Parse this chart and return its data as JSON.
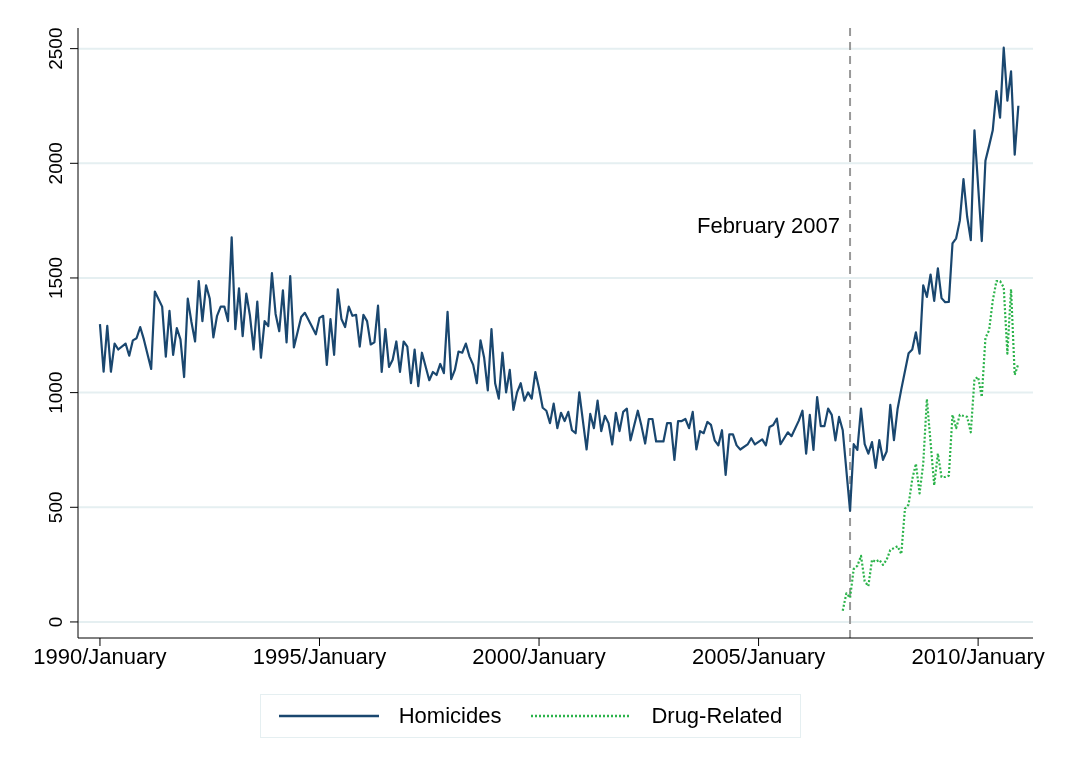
{
  "chart_data": {
    "type": "line",
    "xlim": [
      "1989-07",
      "2011-04"
    ],
    "ylim": [
      -70,
      2590
    ],
    "xticks": [
      {
        "value": "1990-01",
        "label": "1990/January"
      },
      {
        "value": "1995-01",
        "label": "1995/January"
      },
      {
        "value": "2000-01",
        "label": "2000/January"
      },
      {
        "value": "2005-01",
        "label": "2005/January"
      },
      {
        "value": "2010-01",
        "label": "2010/January"
      }
    ],
    "yticks": [
      0,
      500,
      1000,
      1500,
      2000,
      2500
    ],
    "grid": "y",
    "legend": "bottom",
    "marker": "none",
    "ref_lines": [
      {
        "axis": "x",
        "value": "2007-02",
        "label": "February 2007",
        "color": "#999999",
        "line_style": "dashed"
      }
    ],
    "series": [
      {
        "name": "Homicides",
        "color": "#1a476f",
        "line_style": "solid",
        "x": [
          "1990-01",
          "1990-02",
          "1990-03",
          "1990-04",
          "1990-05",
          "1990-06",
          "1990-08",
          "1990-09",
          "1990-10",
          "1990-11",
          "1990-12",
          "1991-01",
          "1991-03",
          "1991-04",
          "1991-06",
          "1991-07",
          "1991-08",
          "1991-09",
          "1991-10",
          "1991-11",
          "1991-12",
          "1992-01",
          "1992-02",
          "1992-03",
          "1992-04",
          "1992-05",
          "1992-06",
          "1992-07",
          "1992-08",
          "1992-09",
          "1992-10",
          "1992-11",
          "1992-12",
          "1993-01",
          "1993-02",
          "1993-03",
          "1993-04",
          "1993-05",
          "1993-06",
          "1993-07",
          "1993-08",
          "1993-09",
          "1993-10",
          "1993-11",
          "1993-12",
          "1994-01",
          "1994-02",
          "1994-03",
          "1994-04",
          "1994-05",
          "1994-06",
          "1994-08",
          "1994-09",
          "1994-11",
          "1994-12",
          "1995-01",
          "1995-02",
          "1995-03",
          "1995-04",
          "1995-05",
          "1995-06",
          "1995-07",
          "1995-08",
          "1995-09",
          "1995-10",
          "1995-11",
          "1995-12",
          "1996-01",
          "1996-02",
          "1996-03",
          "1996-04",
          "1996-05",
          "1996-06",
          "1996-07",
          "1996-08",
          "1996-09",
          "1996-10",
          "1996-11",
          "1996-12",
          "1997-01",
          "1997-02",
          "1997-03",
          "1997-04",
          "1997-05",
          "1997-07",
          "1997-08",
          "1997-09",
          "1997-10",
          "1997-11",
          "1997-12",
          "1998-01",
          "1998-02",
          "1998-03",
          "1998-04",
          "1998-05",
          "1998-06",
          "1998-07",
          "1998-08",
          "1998-09",
          "1998-10",
          "1998-11",
          "1998-12",
          "1999-01",
          "1999-02",
          "1999-03",
          "1999-04",
          "1999-05",
          "1999-06",
          "1999-07",
          "1999-08",
          "1999-09",
          "1999-10",
          "1999-11",
          "1999-12",
          "2000-01",
          "2000-02",
          "2000-03",
          "2000-04",
          "2000-05",
          "2000-06",
          "2000-07",
          "2000-08",
          "2000-09",
          "2000-10",
          "2000-11",
          "2000-12",
          "2001-01",
          "2001-02",
          "2001-03",
          "2001-04",
          "2001-05",
          "2001-06",
          "2001-07",
          "2001-08",
          "2001-09",
          "2001-10",
          "2001-11",
          "2001-12",
          "2002-01",
          "2002-02",
          "2002-04",
          "2002-05",
          "2002-06",
          "2002-07",
          "2002-08",
          "2002-09",
          "2002-11",
          "2002-12",
          "2003-01",
          "2003-02",
          "2003-03",
          "2003-04",
          "2003-05",
          "2003-06",
          "2003-07",
          "2003-08",
          "2003-09",
          "2003-10",
          "2003-11",
          "2003-12",
          "2004-01",
          "2004-02",
          "2004-03",
          "2004-04",
          "2004-05",
          "2004-06",
          "2004-07",
          "2004-08",
          "2004-10",
          "2004-11",
          "2004-12",
          "2005-02",
          "2005-03",
          "2005-04",
          "2005-05",
          "2005-06",
          "2005-07",
          "2005-09",
          "2005-10",
          "2005-12",
          "2006-01",
          "2006-02",
          "2006-03",
          "2006-04",
          "2006-05",
          "2006-06",
          "2006-07",
          "2006-08",
          "2006-09",
          "2006-10",
          "2006-11",
          "2006-12",
          "2007-02",
          "2007-03",
          "2007-04",
          "2007-05",
          "2007-06",
          "2007-07",
          "2007-08",
          "2007-09",
          "2007-10",
          "2007-11",
          "2007-12",
          "2008-01",
          "2008-02",
          "2008-03",
          "2008-04",
          "2008-06",
          "2008-07",
          "2008-08",
          "2008-09",
          "2008-10",
          "2008-11",
          "2008-12",
          "2009-01",
          "2009-02",
          "2009-03",
          "2009-04",
          "2009-05",
          "2009-06",
          "2009-07",
          "2009-08",
          "2009-09",
          "2009-10",
          "2009-11",
          "2009-12",
          "2010-02",
          "2010-03",
          "2010-04",
          "2010-05",
          "2010-06",
          "2010-07",
          "2010-08",
          "2010-09",
          "2010-10",
          "2010-11",
          "2010-12"
        ],
        "values": [
          1299,
          1091,
          1291,
          1091,
          1214,
          1188,
          1214,
          1161,
          1228,
          1237,
          1286,
          1232,
          1103,
          1441,
          1375,
          1157,
          1357,
          1165,
          1281,
          1232,
          1068,
          1410,
          1308,
          1223,
          1486,
          1312,
          1468,
          1410,
          1241,
          1335,
          1375,
          1375,
          1312,
          1677,
          1277,
          1455,
          1246,
          1432,
          1335,
          1188,
          1397,
          1152,
          1312,
          1290,
          1521,
          1343,
          1268,
          1446,
          1219,
          1508,
          1197,
          1330,
          1348,
          1286,
          1254,
          1326,
          1335,
          1121,
          1321,
          1165,
          1450,
          1321,
          1286,
          1375,
          1335,
          1339,
          1201,
          1339,
          1312,
          1210,
          1219,
          1379,
          1090,
          1277,
          1112,
          1143,
          1223,
          1090,
          1223,
          1201,
          1041,
          1188,
          1028,
          1174,
          1054,
          1090,
          1077,
          1125,
          1085,
          1352,
          1059,
          1099,
          1179,
          1174,
          1214,
          1157,
          1121,
          1041,
          1228,
          1152,
          1010,
          1277,
          1041,
          974,
          1174,
          1001,
          1099,
          925,
          1001,
          1041,
          965,
          1001,
          974,
          1090,
          1019,
          934,
          921,
          867,
          952,
          845,
          912,
          876,
          916,
          836,
          823,
          1001,
          876,
          752,
          907,
          845,
          965,
          832,
          899,
          867,
          774,
          912,
          832,
          916,
          930,
          792,
          921,
          854,
          778,
          885,
          885,
          787,
          787,
          867,
          867,
          707,
          876,
          876,
          885,
          845,
          916,
          752,
          832,
          823,
          872,
          859,
          792,
          770,
          836,
          641,
          818,
          818,
          770,
          752,
          774,
          801,
          774,
          796,
          770,
          850,
          859,
          887,
          775,
          827,
          810,
          878,
          921,
          734,
          903,
          750,
          981,
          854,
          854,
          930,
          903,
          792,
          894,
          836,
          485,
          775,
          750,
          930,
          775,
          734,
          784,
          672,
          793,
          707,
          743,
          947,
          793,
          930,
          1014,
          1172,
          1188,
          1263,
          1170,
          1468,
          1417,
          1515,
          1400,
          1542,
          1412,
          1394,
          1396,
          1651,
          1673,
          1750,
          1931,
          1768,
          1665,
          2144,
          1661,
          2011,
          2076,
          2144,
          2315,
          2199,
          2504,
          2273,
          2401,
          2038,
          2251
        ]
      },
      {
        "name": "Drug-Related",
        "color": "#2bb34a",
        "line_style": "dotted",
        "x": [
          "2006-12",
          "2007-01",
          "2007-02",
          "2007-03",
          "2007-04",
          "2007-05",
          "2007-06",
          "2007-07",
          "2007-08",
          "2007-09",
          "2007-10",
          "2007-11",
          "2007-12",
          "2008-01",
          "2008-03",
          "2008-04",
          "2008-05",
          "2008-06",
          "2008-07",
          "2008-08",
          "2008-09",
          "2008-10",
          "2008-11",
          "2008-12",
          "2009-01",
          "2009-02",
          "2009-03",
          "2009-04",
          "2009-05",
          "2009-06",
          "2009-07",
          "2009-08",
          "2009-10",
          "2009-11",
          "2009-12",
          "2010-01",
          "2010-02",
          "2010-03",
          "2010-04",
          "2010-05",
          "2010-06",
          "2010-07",
          "2010-08",
          "2010-09",
          "2010-10",
          "2010-11",
          "2010-12"
        ],
        "values": [
          49,
          125,
          105,
          231,
          245,
          288,
          177,
          156,
          271,
          262,
          271,
          249,
          271,
          314,
          330,
          296,
          494,
          512,
          623,
          690,
          561,
          690,
          972,
          784,
          596,
          734,
          632,
          632,
          638,
          903,
          845,
          903,
          894,
          827,
          1059,
          1068,
          981,
          1238,
          1272,
          1401,
          1486,
          1486,
          1459,
          1170,
          1451,
          1077,
          1126
        ]
      }
    ]
  }
}
